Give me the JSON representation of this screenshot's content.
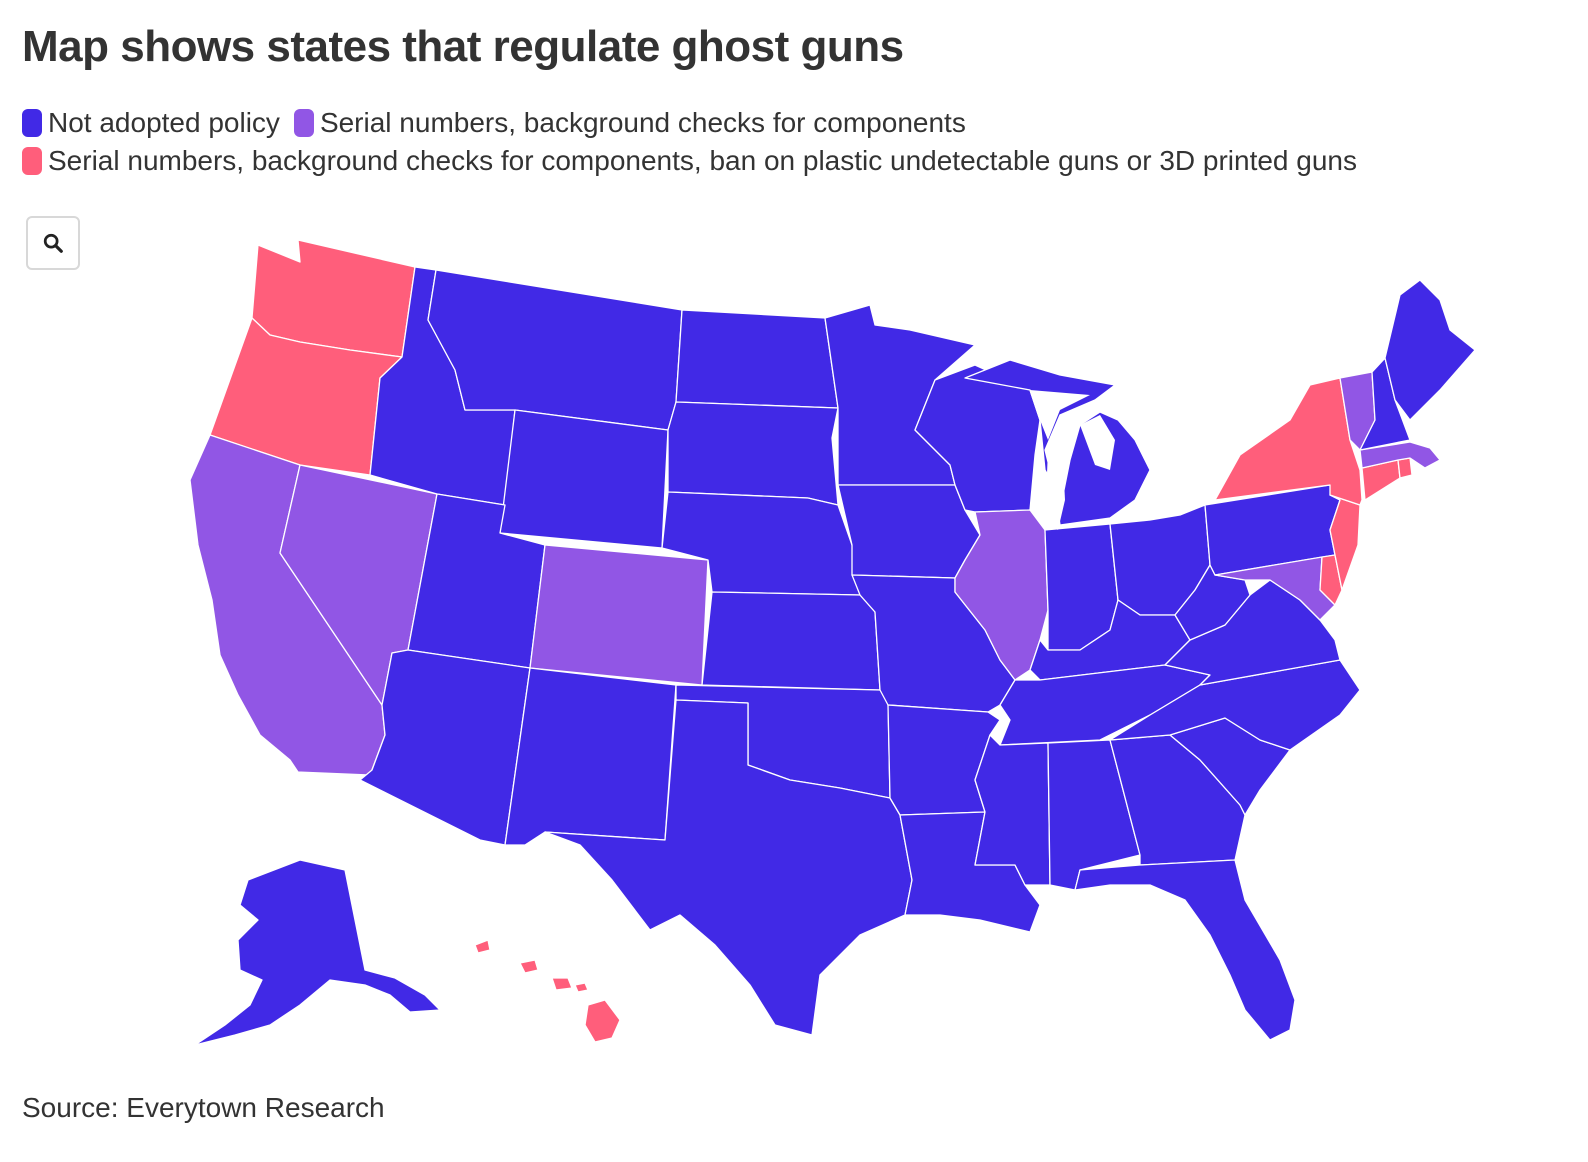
{
  "title": "Map shows states that regulate ghost guns",
  "legend": [
    {
      "label": "Not adopted policy",
      "color": "#4129e6",
      "category": "none"
    },
    {
      "label": "Serial numbers, background checks for components",
      "color": "#9156e5",
      "category": "serial"
    },
    {
      "label": "Serial numbers, background checks for components, ban on plastic undetectable guns or 3D printed guns",
      "color": "#ff5e7b",
      "category": "ban"
    }
  ],
  "colors": {
    "none": "#4129e6",
    "serial": "#9156e5",
    "ban": "#ff5e7b",
    "border": "#ffffff"
  },
  "zoom_button": {
    "icon": "search-icon"
  },
  "map": {
    "region": "United States",
    "states": {
      "WA": "ban",
      "OR": "ban",
      "CA": "serial",
      "NV": "serial",
      "ID": "none",
      "MT": "none",
      "WY": "none",
      "UT": "none",
      "AZ": "none",
      "CO": "serial",
      "NM": "none",
      "ND": "none",
      "SD": "none",
      "NE": "none",
      "KS": "none",
      "OK": "none",
      "TX": "none",
      "MN": "none",
      "IA": "none",
      "MO": "none",
      "AR": "none",
      "LA": "none",
      "WI": "none",
      "IL": "serial",
      "MI": "none",
      "IN": "none",
      "OH": "none",
      "KY": "none",
      "TN": "none",
      "MS": "none",
      "AL": "none",
      "GA": "none",
      "FL": "none",
      "SC": "none",
      "NC": "none",
      "VA": "none",
      "WV": "none",
      "PA": "none",
      "NY": "ban",
      "VT": "serial",
      "NH": "none",
      "ME": "none",
      "MA": "serial",
      "RI": "ban",
      "CT": "ban",
      "NJ": "ban",
      "DE": "ban",
      "MD": "serial",
      "AK": "none",
      "HI": "ban"
    }
  },
  "source": "Source: Everytown Research"
}
